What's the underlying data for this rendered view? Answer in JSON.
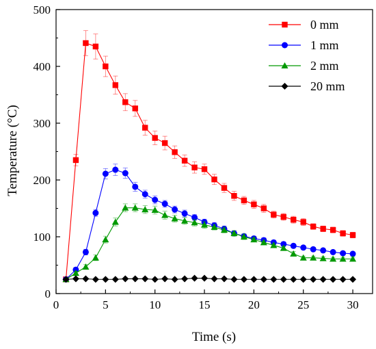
{
  "chart_data": {
    "type": "line",
    "title": "",
    "xlabel": "Time (s)",
    "ylabel": "Temperature (°C)",
    "xlim": [
      0,
      32
    ],
    "ylim": [
      0,
      500
    ],
    "xticks": [
      0,
      5,
      10,
      15,
      20,
      25,
      30
    ],
    "yticks": [
      0,
      100,
      200,
      300,
      400,
      500
    ],
    "grid": false,
    "legend_position": "top-right",
    "x": [
      1,
      2,
      3,
      4,
      5,
      6,
      7,
      8,
      9,
      10,
      11,
      12,
      13,
      14,
      15,
      16,
      17,
      18,
      19,
      20,
      21,
      22,
      23,
      24,
      25,
      26,
      27,
      28,
      29,
      30
    ],
    "series": [
      {
        "name": "0 mm",
        "color": "#ff0000",
        "marker": "square",
        "values": [
          25,
          235,
          441,
          435,
          400,
          367,
          337,
          326,
          292,
          274,
          265,
          249,
          234,
          222,
          219,
          201,
          186,
          172,
          164,
          157,
          150,
          139,
          135,
          130,
          126,
          118,
          114,
          112,
          106,
          103
        ],
        "errors": [
          0,
          10,
          22,
          22,
          18,
          16,
          15,
          14,
          13,
          12,
          12,
          11,
          10,
          10,
          9,
          9,
          8,
          8,
          7,
          7,
          7,
          6,
          6,
          6,
          6,
          5,
          5,
          5,
          5,
          5
        ]
      },
      {
        "name": "1 mm",
        "color": "#0000ff",
        "marker": "circle",
        "values": [
          25,
          42,
          73,
          142,
          211,
          218,
          212,
          188,
          175,
          165,
          158,
          148,
          141,
          134,
          126,
          120,
          114,
          106,
          101,
          97,
          94,
          90,
          87,
          84,
          81,
          78,
          76,
          73,
          71,
          70
        ],
        "errors": [
          0,
          4,
          5,
          6,
          9,
          10,
          9,
          8,
          7,
          7,
          6,
          6,
          6,
          5,
          5,
          5,
          5,
          4,
          4,
          4,
          4,
          4,
          4,
          3,
          3,
          3,
          3,
          3,
          3,
          3
        ]
      },
      {
        "name": "2 mm",
        "color": "#009900",
        "marker": "triangle",
        "values": [
          25,
          36,
          47,
          63,
          95,
          126,
          151,
          151,
          148,
          147,
          138,
          132,
          128,
          125,
          121,
          117,
          112,
          106,
          100,
          95,
          90,
          85,
          80,
          70,
          63,
          63,
          62,
          61,
          61,
          61
        ],
        "errors": [
          0,
          3,
          4,
          5,
          6,
          7,
          7,
          7,
          7,
          7,
          7,
          6,
          6,
          6,
          6,
          5,
          5,
          5,
          5,
          4,
          4,
          4,
          4,
          4,
          3,
          3,
          3,
          3,
          3,
          3
        ]
      },
      {
        "name": "20 mm",
        "color": "#000000",
        "marker": "diamond",
        "values": [
          25,
          26,
          26,
          25,
          25,
          25,
          26,
          26,
          26,
          25,
          26,
          25,
          26,
          27,
          27,
          26,
          26,
          25,
          25,
          25,
          25,
          25,
          25,
          25,
          25,
          25,
          25,
          25,
          25,
          25
        ],
        "errors": [
          0,
          1,
          1,
          1,
          1,
          1,
          1,
          1,
          1,
          1,
          1,
          1,
          1,
          1,
          1,
          1,
          1,
          1,
          1,
          1,
          1,
          1,
          1,
          1,
          1,
          1,
          1,
          1,
          1,
          1
        ]
      }
    ]
  }
}
